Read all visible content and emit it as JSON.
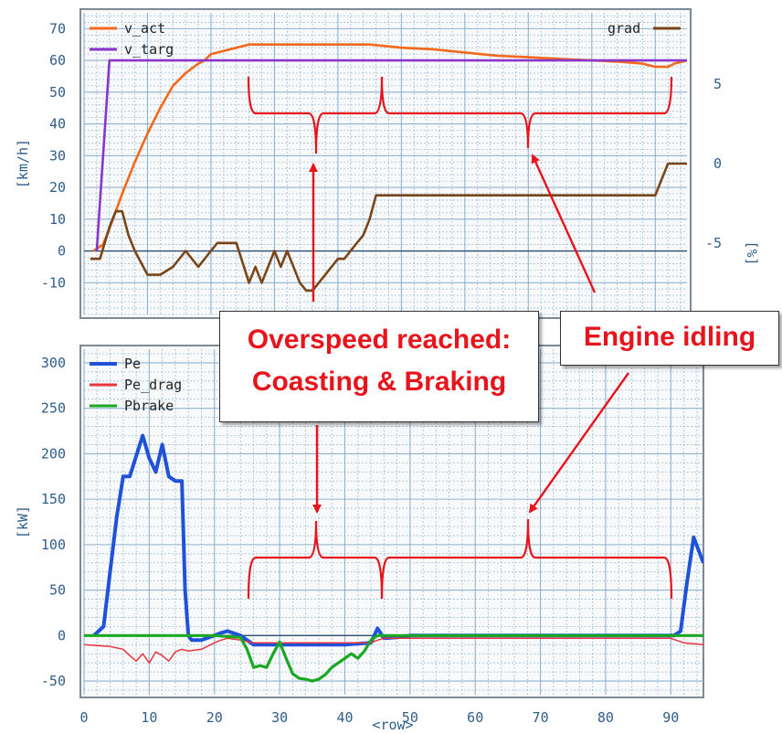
{
  "colors": {
    "v_act": "#f2691c",
    "v_targ": "#8a34cc",
    "grad": "#7a4618",
    "Pe": "#1f52d8",
    "Pe_drag": "#e8363c",
    "Pbrake": "#1aa824",
    "annotation": "#e8141c",
    "axis_text": "#2f5d8a",
    "grid": "#7fa7c9",
    "zero_line": "#2e4f6e"
  },
  "annotations": {
    "overspeed_line1": "Overspeed reached:",
    "overspeed_line2": "Coasting & Braking",
    "idling": "Engine idling"
  },
  "chart_data": [
    {
      "type": "line",
      "ylabel": "[km/h]",
      "y2label": "[%]",
      "xlim": [
        0,
        95
      ],
      "ylim": [
        -20,
        75
      ],
      "y2lim": [
        -9.5,
        9.5
      ],
      "yticks": [
        -10,
        0,
        10,
        20,
        30,
        40,
        50,
        60,
        70
      ],
      "y2ticks": [
        -5,
        0,
        5
      ],
      "legend_left": [
        "v_act",
        "v_targ"
      ],
      "legend_right": [
        "grad"
      ],
      "series": [
        {
          "name": "v_act",
          "axis": "y",
          "color_key": "v_act",
          "x": [
            1.5,
            3,
            4,
            6,
            8,
            10,
            12,
            14,
            16,
            18,
            19,
            20,
            22,
            24,
            26,
            30,
            35,
            40,
            45,
            50,
            55,
            60,
            65,
            70,
            75,
            80,
            85,
            88,
            90,
            92,
            93,
            95
          ],
          "y": [
            0,
            2,
            7,
            18,
            28,
            37,
            45,
            52,
            56,
            59,
            60,
            62,
            63,
            64,
            65,
            65,
            65,
            65,
            65,
            64,
            63.5,
            62.5,
            61.5,
            61,
            60.5,
            60,
            59.5,
            59,
            58,
            58,
            59,
            60
          ]
        },
        {
          "name": "v_targ",
          "axis": "y",
          "color_key": "v_targ",
          "x": [
            2,
            4,
            4.5,
            10,
            20,
            40,
            60,
            80,
            95
          ],
          "y": [
            0,
            60,
            60,
            60,
            60,
            60,
            60,
            60,
            60
          ]
        },
        {
          "name": "grad",
          "axis": "y2",
          "color_key": "grad",
          "x": [
            1,
            2.5,
            4,
            5,
            6,
            7,
            8,
            10,
            12,
            14,
            16,
            18,
            20,
            21,
            22,
            24,
            26,
            27,
            28,
            30,
            31,
            32,
            34,
            35,
            36,
            38,
            40,
            41,
            43,
            44,
            45,
            46,
            50,
            60,
            70,
            80,
            90,
            91,
            92,
            93,
            95
          ],
          "y": [
            -6,
            -6,
            -4,
            -3,
            -3,
            -4.5,
            -5.5,
            -7,
            -7,
            -6.5,
            -5.5,
            -6.5,
            -5.5,
            -5,
            -5,
            -5,
            -7.5,
            -6.5,
            -7.5,
            -5.5,
            -6.5,
            -5.5,
            -7.5,
            -8,
            -8,
            -7,
            -6,
            -6,
            -5,
            -4.5,
            -3.5,
            -2,
            -2,
            -2,
            -2,
            -2,
            -2,
            -1,
            0,
            0,
            0
          ]
        }
      ]
    },
    {
      "type": "line",
      "ylabel": "[kW]",
      "xlabel": "<row>",
      "xlim": [
        0,
        95
      ],
      "ylim": [
        -65,
        315
      ],
      "yticks": [
        -50,
        0,
        50,
        100,
        150,
        200,
        250,
        300
      ],
      "xticks": [
        0,
        10,
        20,
        30,
        40,
        50,
        60,
        70,
        80,
        90
      ],
      "legend": [
        "Pe",
        "Pe_drag",
        "Pbrake"
      ],
      "series": [
        {
          "name": "Pe",
          "color_key": "Pe",
          "x": [
            1.5,
            3,
            4,
            5,
            6,
            7,
            9,
            10,
            11,
            12,
            13,
            14,
            15,
            15.5,
            16,
            16.5,
            18,
            20,
            21,
            22,
            24,
            26,
            30,
            35,
            40,
            44,
            45,
            46,
            48,
            50,
            55,
            60,
            70,
            80,
            90,
            90.5,
            91.5,
            92.5,
            93.5,
            95
          ],
          "y": [
            0,
            10,
            70,
            130,
            175,
            175,
            220,
            195,
            180,
            210,
            175,
            170,
            170,
            50,
            0,
            -5,
            -5,
            0,
            3,
            5,
            0,
            -10,
            -10,
            -10,
            -10,
            -8,
            8,
            -3,
            -2,
            0,
            0,
            0,
            0,
            0,
            0,
            0,
            5,
            60,
            108,
            80
          ]
        },
        {
          "name": "Pe_drag",
          "color_key": "Pe_drag",
          "x": [
            0,
            4,
            6,
            7,
            8,
            9,
            10,
            11,
            12,
            13,
            14,
            15,
            16,
            18,
            20,
            21,
            22,
            24,
            26,
            30,
            35,
            40,
            44,
            45,
            46,
            50,
            60,
            70,
            80,
            90,
            92,
            95
          ],
          "y": [
            -10,
            -12,
            -15,
            -22,
            -28,
            -20,
            -30,
            -18,
            -22,
            -28,
            -18,
            -15,
            -17,
            -15,
            -8,
            -5,
            -3,
            -5,
            -8,
            -8,
            -8,
            -8,
            -8,
            -5,
            -3,
            -3,
            -3,
            -3,
            -3,
            -3,
            -8,
            -10
          ]
        },
        {
          "name": "Pbrake",
          "color_key": "Pbrake",
          "x": [
            0,
            10,
            20,
            24,
            25,
            26,
            27,
            28,
            29,
            30,
            31,
            32,
            33,
            34,
            35,
            36,
            37,
            38,
            39,
            40,
            41,
            42,
            43,
            44,
            45,
            50,
            95
          ],
          "y": [
            0,
            0,
            0,
            -2,
            -15,
            -35,
            -33,
            -35,
            -20,
            -7,
            -25,
            -42,
            -47,
            -48,
            -50,
            -48,
            -43,
            -35,
            -30,
            -25,
            -20,
            -25,
            -17,
            -5,
            0,
            0,
            0
          ]
        }
      ]
    }
  ]
}
